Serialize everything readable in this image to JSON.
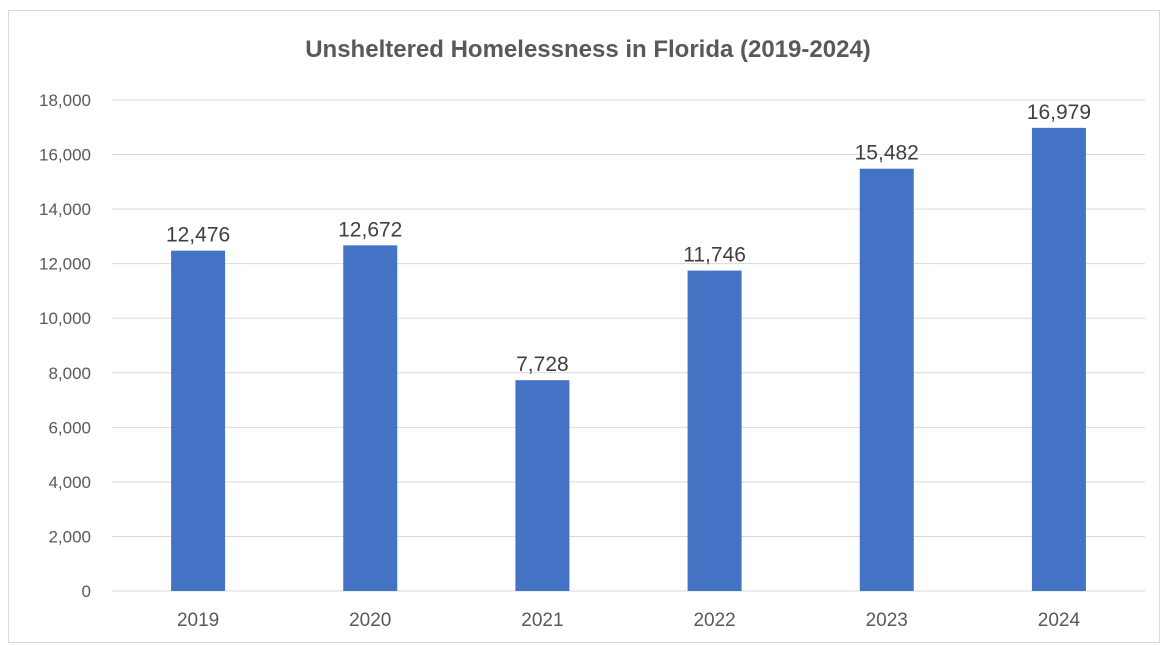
{
  "chart_data": {
    "type": "bar",
    "title": "Unsheltered Homelessness in Florida (2019-2024)",
    "xlabel": "",
    "ylabel": "",
    "categories": [
      "2019",
      "2020",
      "2021",
      "2022",
      "2023",
      "2024"
    ],
    "values": [
      12476,
      12672,
      7728,
      11746,
      15482,
      16979
    ],
    "data_labels": [
      "12,476",
      "12,672",
      "7,728",
      "11,746",
      "15,482",
      "16,979"
    ],
    "ylim": [
      0,
      18000
    ],
    "yticks": [
      0,
      2000,
      4000,
      6000,
      8000,
      10000,
      12000,
      14000,
      16000,
      18000
    ],
    "ytick_labels": [
      "0",
      "2,000",
      "4,000",
      "6,000",
      "8,000",
      "10,000",
      "12,000",
      "14,000",
      "16,000",
      "18,000"
    ],
    "grid": true,
    "legend": "none",
    "colors": {
      "bar": "#4472C4",
      "grid": "#d9d9d9",
      "text": "#595959"
    }
  }
}
